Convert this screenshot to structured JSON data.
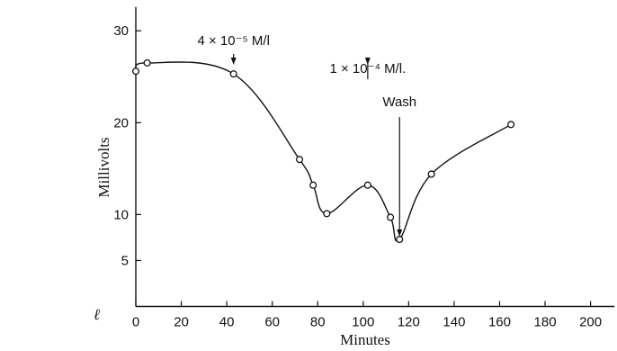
{
  "chart_data": {
    "type": "line",
    "xlabel": "Minutes",
    "ylabel": "Millivolts",
    "xlim": [
      0,
      205
    ],
    "ylim": [
      0,
      32
    ],
    "x_ticks": [
      "0",
      "20",
      "40",
      "60",
      "80",
      "100",
      "120",
      "140",
      "160",
      "180",
      "200"
    ],
    "y_ticks": [
      "5",
      "10",
      "20",
      "30"
    ],
    "series": [
      {
        "x": [
          0,
          5,
          43,
          72,
          78,
          84,
          102,
          112,
          116,
          130,
          165
        ],
        "y": [
          25.6,
          26.5,
          25.3,
          16.0,
          13.2,
          10.1,
          13.2,
          9.7,
          7.3,
          14.4,
          19.8
        ]
      }
    ],
    "annotations": [
      {
        "text": "4 × 10⁻⁵ M/l",
        "x": 43,
        "arrow_to_y": 26.3
      },
      {
        "text": "1 × 10⁻⁴ M/l.",
        "x": 102,
        "arrow_to_y": 26.3
      },
      {
        "text": "Wash",
        "x": 116,
        "arrow_to_y": 7.6
      }
    ],
    "stray_mark": "ℓ"
  }
}
